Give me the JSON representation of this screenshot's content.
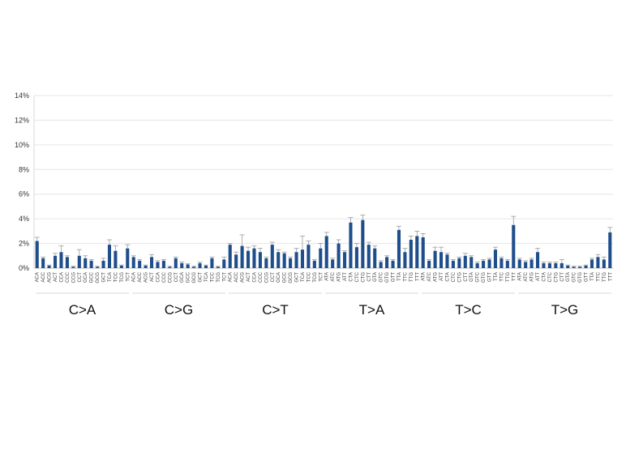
{
  "chart_data": {
    "type": "bar",
    "title": "",
    "xlabel": "",
    "ylabel": "",
    "ylim": [
      0,
      14
    ],
    "y_ticks": [
      "0%",
      "2%",
      "4%",
      "6%",
      "8%",
      "10%",
      "12%",
      "14%"
    ],
    "grid": true,
    "legend": "none",
    "bar_color": "#1f4e8c",
    "error_bar_color": "#999999",
    "groups": [
      {
        "label": "C>A",
        "categories": [
          "ACA",
          "ACC",
          "ACG",
          "ACT",
          "CCA",
          "CCC",
          "CCG",
          "CCT",
          "GCA",
          "GCC",
          "GCG",
          "GCT",
          "TCA",
          "TCC",
          "TCG",
          "TCT"
        ],
        "values": [
          2.2,
          0.8,
          0.2,
          1.0,
          1.3,
          0.9,
          0.1,
          1.0,
          0.8,
          0.6,
          0.1,
          0.6,
          1.9,
          1.4,
          0.2,
          1.6
        ],
        "errors": [
          0.3,
          0.1,
          0.05,
          0.2,
          0.5,
          0.1,
          0.05,
          0.5,
          0.2,
          0.1,
          0.05,
          0.2,
          0.4,
          0.4,
          0.05,
          0.3
        ]
      },
      {
        "label": "C>G",
        "categories": [
          "ACA",
          "ACC",
          "ACG",
          "ACT",
          "CCA",
          "CCC",
          "CCG",
          "CCT",
          "GCA",
          "GCC",
          "GCG",
          "GCT",
          "TCA",
          "TCC",
          "TCG",
          "TCT"
        ],
        "values": [
          0.9,
          0.6,
          0.2,
          0.9,
          0.5,
          0.6,
          0.1,
          0.8,
          0.4,
          0.3,
          0.1,
          0.4,
          0.2,
          0.8,
          0.1,
          0.7
        ],
        "errors": [
          0.1,
          0.1,
          0.05,
          0.2,
          0.1,
          0.1,
          0.05,
          0.1,
          0.1,
          0.05,
          0.05,
          0.1,
          0.05,
          0.1,
          0.05,
          0.2
        ]
      },
      {
        "label": "C>T",
        "categories": [
          "ACA",
          "ACC",
          "ACG",
          "ACT",
          "CCA",
          "CCC",
          "CCG",
          "CCT",
          "GCA",
          "GCC",
          "GCG",
          "GCT",
          "TCA",
          "TCC",
          "TCG",
          "TCT"
        ],
        "values": [
          1.9,
          1.1,
          1.8,
          1.4,
          1.6,
          1.3,
          0.8,
          1.9,
          1.3,
          1.2,
          0.8,
          1.3,
          1.5,
          1.9,
          0.6,
          1.6
        ],
        "errors": [
          0.1,
          0.2,
          0.9,
          0.3,
          0.2,
          0.3,
          0.1,
          0.2,
          0.2,
          0.1,
          0.1,
          0.3,
          1.1,
          0.3,
          0.1,
          0.4
        ]
      },
      {
        "label": "T>A",
        "categories": [
          "ATA",
          "ATC",
          "ATG",
          "ATT",
          "CTA",
          "CTC",
          "CTG",
          "CTT",
          "GTA",
          "GTC",
          "GTG",
          "GTT",
          "TTA",
          "TTC",
          "TTG",
          "TTT"
        ],
        "values": [
          2.6,
          0.7,
          2.0,
          1.3,
          3.7,
          1.7,
          3.9,
          1.9,
          1.6,
          0.5,
          0.9,
          0.6,
          3.1,
          1.3,
          2.3,
          2.6
        ],
        "errors": [
          0.3,
          0.1,
          0.3,
          0.1,
          0.4,
          0.3,
          0.4,
          0.2,
          0.2,
          0.1,
          0.1,
          0.1,
          0.3,
          0.3,
          0.3,
          0.4
        ]
      },
      {
        "label": "T>C",
        "categories": [
          "ATA",
          "ATC",
          "ATG",
          "ATT",
          "CTA",
          "CTC",
          "CTG",
          "CTT",
          "GTA",
          "GTC",
          "GTG",
          "GTT",
          "TTA",
          "TTC",
          "TTG",
          "TTT"
        ],
        "values": [
          2.5,
          0.6,
          1.4,
          1.3,
          1.1,
          0.6,
          0.8,
          1.0,
          0.9,
          0.4,
          0.6,
          0.7,
          1.5,
          0.8,
          0.6,
          3.5
        ],
        "errors": [
          0.3,
          0.1,
          0.3,
          0.4,
          0.1,
          0.1,
          0.1,
          0.2,
          0.1,
          0.1,
          0.1,
          0.1,
          0.2,
          0.1,
          0.1,
          0.7
        ]
      },
      {
        "label": "T>G",
        "categories": [
          "ATA",
          "ATC",
          "ATG",
          "ATT",
          "CTA",
          "CTC",
          "CTG",
          "CTT",
          "GTA",
          "GTC",
          "GTG",
          "GTT",
          "TTA",
          "TTC",
          "TTG",
          "TTT"
        ],
        "values": [
          0.7,
          0.5,
          0.7,
          1.3,
          0.4,
          0.4,
          0.4,
          0.4,
          0.2,
          0.1,
          0.1,
          0.2,
          0.7,
          0.9,
          0.7,
          2.9
        ],
        "errors": [
          0.1,
          0.1,
          0.1,
          0.3,
          0.1,
          0.1,
          0.1,
          0.3,
          0.05,
          0.05,
          0.05,
          0.05,
          0.1,
          0.2,
          0.2,
          0.4
        ]
      }
    ]
  }
}
